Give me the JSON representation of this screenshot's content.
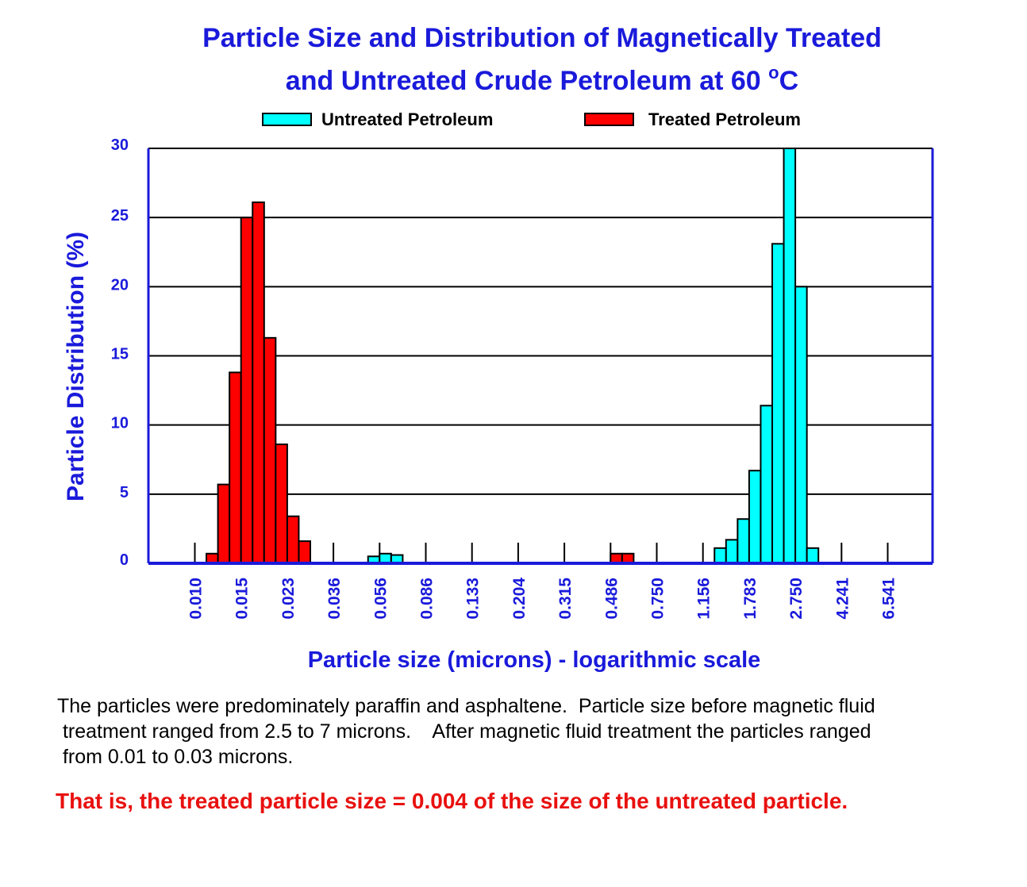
{
  "chart_data": {
    "type": "bar",
    "title_line1": "Particle Size and Distribution of Magnetically Treated",
    "title_line2": "and Untreated Crude Petroleum at 60 ",
    "title_degree": "o",
    "title_unit": "C",
    "ylabel": "Particle Distribution (%)",
    "xlabel": "Particle size (microns)  -  logarithmic scale",
    "ylim": [
      0,
      30
    ],
    "yticks": [
      "0",
      "5",
      "10",
      "15",
      "20",
      "25",
      "30"
    ],
    "x_scale": "log",
    "x_tick_labels": [
      "0.010",
      "0.015",
      "0.023",
      "0.036",
      "0.056",
      "0.086",
      "0.133",
      "0.204",
      "0.315",
      "0.486",
      "0.750",
      "1.156",
      "1.783",
      "2.750",
      "4.241",
      "6.541"
    ],
    "bins_per_tick": 4,
    "grid": "horizontal",
    "legend_placement": "top",
    "series": [
      {
        "name": "Untreated Petroleum",
        "color": "#00ffff",
        "bins": [
          15,
          16,
          17,
          45,
          46,
          47,
          48,
          49,
          50,
          51,
          52,
          53,
          54,
          55,
          56
        ],
        "values": [
          0.5,
          0.7,
          0.6,
          1.1,
          1.7,
          3.2,
          6.7,
          11.4,
          23.1,
          30,
          20,
          1.1,
          0,
          0,
          0
        ]
      },
      {
        "name": "Treated Petroleum",
        "color": "#ff0000",
        "bins": [
          1,
          2,
          3,
          4,
          5,
          6,
          7,
          8,
          9,
          36,
          37
        ],
        "values": [
          0.7,
          5.7,
          13.8,
          25,
          26.1,
          16.3,
          8.6,
          3.4,
          1.6,
          0.7,
          0.7
        ]
      }
    ]
  },
  "caption": {
    "line1": "The particles were predominately paraffin and asphaltene.  Particle size before magnetic fluid",
    "line2": " treatment ranged from 2.5 to 7 microns.    After magnetic fluid treatment the particles ranged",
    "line3": " from 0.01 to 0.03 microns."
  },
  "conclusion": "That is, the treated particle size = 0.004 of the size of the untreated particle.",
  "colors": {
    "title": "#1a1adb",
    "axis": "#1a1adb",
    "conclusion": "#e8110f"
  }
}
